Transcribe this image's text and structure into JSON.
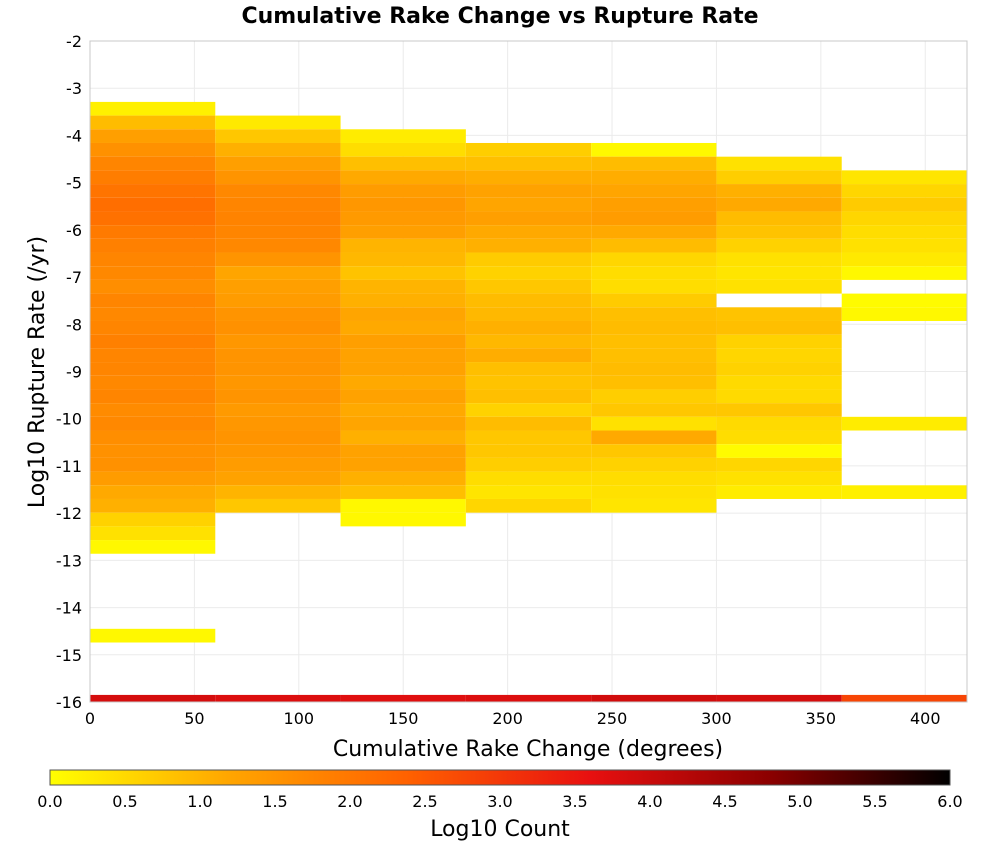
{
  "chart_data": {
    "type": "heatmap",
    "title": "Cumulative Rake Change vs Rupture Rate",
    "xlabel": "Cumulative Rake Change (degrees)",
    "ylabel": "Log10 Rupture Rate (/yr)",
    "xlim": [
      0,
      420
    ],
    "ylim": [
      -16,
      -2
    ],
    "x_ticks": [
      "0",
      "50",
      "100",
      "150",
      "200",
      "250",
      "300",
      "350",
      "400"
    ],
    "x_tick_values": [
      0,
      50,
      100,
      150,
      200,
      250,
      300,
      350,
      400
    ],
    "y_ticks": [
      "-2",
      "-3",
      "-4",
      "-5",
      "-6",
      "-7",
      "-8",
      "-9",
      "-10",
      "-11",
      "-12",
      "-13",
      "-14",
      "-15",
      "-16"
    ],
    "y_tick_values": [
      -2,
      -3,
      -4,
      -5,
      -6,
      -7,
      -8,
      -9,
      -10,
      -11,
      -12,
      -13,
      -14,
      -15,
      -16
    ],
    "grid": true,
    "x_bins": [
      [
        0,
        60
      ],
      [
        60,
        120
      ],
      [
        120,
        180
      ],
      [
        180,
        240
      ],
      [
        240,
        300
      ],
      [
        300,
        360
      ],
      [
        360,
        420
      ]
    ],
    "y_bin_size": 0.29,
    "colorbar": {
      "label": "Log10 Count",
      "range": [
        0,
        6
      ],
      "ticks": [
        "0.0",
        "0.5",
        "1.0",
        "1.5",
        "2.0",
        "2.5",
        "3.0",
        "3.5",
        "4.0",
        "4.5",
        "5.0",
        "5.5",
        "6.0"
      ],
      "tick_values": [
        0,
        0.5,
        1.0,
        1.5,
        2.0,
        2.5,
        3.0,
        3.5,
        4.0,
        4.5,
        5.0,
        5.5,
        6.0
      ],
      "stops": [
        "#ffff00",
        "#ffa500",
        "#ff6000",
        "#e81010",
        "#8b0000",
        "#000000"
      ]
    },
    "columns": [
      {
        "x_range": [
          0,
          60
        ],
        "bottom_row": {
          "y_range": [
            -16,
            -15.85
          ],
          "value": 3.85
        },
        "cells": [
          [
            -3.58,
            -3.29,
            0.2
          ],
          [
            -3.87,
            -3.58,
            0.9
          ],
          [
            -4.16,
            -3.87,
            1.3
          ],
          [
            -4.45,
            -4.16,
            1.55
          ],
          [
            -4.74,
            -4.45,
            1.75
          ],
          [
            -5.03,
            -4.74,
            1.9
          ],
          [
            -5.32,
            -5.03,
            2.05
          ],
          [
            -5.61,
            -5.32,
            2.15
          ],
          [
            -5.9,
            -5.61,
            2.1
          ],
          [
            -6.19,
            -5.9,
            1.95
          ],
          [
            -6.48,
            -6.19,
            1.85
          ],
          [
            -6.77,
            -6.48,
            1.75
          ],
          [
            -7.06,
            -6.77,
            1.7
          ],
          [
            -7.35,
            -7.06,
            1.6
          ],
          [
            -7.64,
            -7.35,
            1.75
          ],
          [
            -7.93,
            -7.64,
            1.7
          ],
          [
            -8.22,
            -7.93,
            1.75
          ],
          [
            -8.51,
            -8.22,
            1.85
          ],
          [
            -8.8,
            -8.51,
            1.75
          ],
          [
            -9.09,
            -8.8,
            1.75
          ],
          [
            -9.38,
            -9.09,
            1.7
          ],
          [
            -9.67,
            -9.38,
            1.75
          ],
          [
            -9.96,
            -9.67,
            1.65
          ],
          [
            -10.25,
            -9.96,
            1.7
          ],
          [
            -10.54,
            -10.25,
            1.6
          ],
          [
            -10.83,
            -10.54,
            1.55
          ],
          [
            -11.12,
            -10.83,
            1.55
          ],
          [
            -11.41,
            -11.12,
            1.35
          ],
          [
            -11.7,
            -11.41,
            1.15
          ],
          [
            -11.99,
            -11.7,
            1.05
          ],
          [
            -12.28,
            -11.99,
            0.6
          ],
          [
            -12.57,
            -12.28,
            0.4
          ],
          [
            -12.86,
            -12.57,
            0.1
          ],
          [
            -14.74,
            -14.45,
            0.1
          ]
        ]
      },
      {
        "x_range": [
          60,
          120
        ],
        "bottom_row": {
          "y_range": [
            -16,
            -15.85
          ],
          "value": 3.75
        },
        "cells": [
          [
            -3.87,
            -3.58,
            0.3
          ],
          [
            -4.16,
            -3.87,
            0.75
          ],
          [
            -4.45,
            -4.16,
            1.05
          ],
          [
            -4.74,
            -4.45,
            1.3
          ],
          [
            -5.03,
            -4.74,
            1.5
          ],
          [
            -5.32,
            -5.03,
            1.7
          ],
          [
            -5.61,
            -5.32,
            1.75
          ],
          [
            -5.9,
            -5.61,
            1.8
          ],
          [
            -6.19,
            -5.9,
            1.75
          ],
          [
            -6.48,
            -6.19,
            1.7
          ],
          [
            -6.77,
            -6.48,
            1.5
          ],
          [
            -7.06,
            -6.77,
            1.2
          ],
          [
            -7.35,
            -7.06,
            1.3
          ],
          [
            -7.64,
            -7.35,
            1.35
          ],
          [
            -7.93,
            -7.64,
            1.5
          ],
          [
            -8.22,
            -7.93,
            1.55
          ],
          [
            -8.51,
            -8.22,
            1.45
          ],
          [
            -8.8,
            -8.51,
            1.5
          ],
          [
            -9.09,
            -8.8,
            1.5
          ],
          [
            -9.38,
            -9.09,
            1.45
          ],
          [
            -9.67,
            -9.38,
            1.5
          ],
          [
            -9.96,
            -9.67,
            1.4
          ],
          [
            -10.25,
            -9.96,
            1.45
          ],
          [
            -10.54,
            -10.25,
            1.5
          ],
          [
            -10.83,
            -10.54,
            1.45
          ],
          [
            -11.12,
            -10.83,
            1.35
          ],
          [
            -11.41,
            -11.12,
            1.25
          ],
          [
            -11.7,
            -11.41,
            1.0
          ],
          [
            -11.99,
            -11.7,
            0.75
          ]
        ]
      },
      {
        "x_range": [
          120,
          180
        ],
        "bottom_row": {
          "y_range": [
            -16,
            -15.85
          ],
          "value": 3.7
        },
        "cells": [
          [
            -4.16,
            -3.87,
            0.25
          ],
          [
            -4.45,
            -4.16,
            0.45
          ],
          [
            -4.74,
            -4.45,
            0.85
          ],
          [
            -5.03,
            -4.74,
            1.15
          ],
          [
            -5.32,
            -5.03,
            1.35
          ],
          [
            -5.61,
            -5.32,
            1.45
          ],
          [
            -5.9,
            -5.61,
            1.4
          ],
          [
            -6.19,
            -5.9,
            1.3
          ],
          [
            -6.48,
            -6.19,
            1.0
          ],
          [
            -6.77,
            -6.48,
            0.95
          ],
          [
            -7.06,
            -6.77,
            0.8
          ],
          [
            -7.35,
            -7.06,
            1.0
          ],
          [
            -7.64,
            -7.35,
            1.05
          ],
          [
            -7.93,
            -7.64,
            1.2
          ],
          [
            -8.22,
            -7.93,
            1.15
          ],
          [
            -8.51,
            -8.22,
            1.3
          ],
          [
            -8.8,
            -8.51,
            1.25
          ],
          [
            -9.09,
            -8.8,
            1.25
          ],
          [
            -9.38,
            -9.09,
            1.15
          ],
          [
            -9.67,
            -9.38,
            1.25
          ],
          [
            -9.96,
            -9.67,
            1.15
          ],
          [
            -10.25,
            -9.96,
            1.2
          ],
          [
            -10.54,
            -10.25,
            1.05
          ],
          [
            -10.83,
            -10.54,
            1.25
          ],
          [
            -11.12,
            -10.83,
            1.25
          ],
          [
            -11.41,
            -11.12,
            1.05
          ],
          [
            -11.7,
            -11.41,
            0.85
          ],
          [
            -11.99,
            -11.7,
            0.1
          ],
          [
            -12.28,
            -11.99,
            0.1
          ]
        ]
      },
      {
        "x_range": [
          180,
          240
        ],
        "bottom_row": {
          "y_range": [
            -16,
            -15.85
          ],
          "value": 3.75
        },
        "cells": [
          [
            -4.45,
            -4.16,
            0.65
          ],
          [
            -4.74,
            -4.45,
            0.85
          ],
          [
            -5.03,
            -4.74,
            1.1
          ],
          [
            -5.32,
            -5.03,
            1.25
          ],
          [
            -5.61,
            -5.32,
            1.2
          ],
          [
            -5.9,
            -5.61,
            1.3
          ],
          [
            -6.19,
            -5.9,
            1.15
          ],
          [
            -6.48,
            -6.19,
            1.05
          ],
          [
            -6.77,
            -6.48,
            0.7
          ],
          [
            -7.06,
            -6.77,
            0.6
          ],
          [
            -7.35,
            -7.06,
            0.75
          ],
          [
            -7.64,
            -7.35,
            0.9
          ],
          [
            -7.93,
            -7.64,
            0.95
          ],
          [
            -8.22,
            -7.93,
            1.05
          ],
          [
            -8.51,
            -8.22,
            0.95
          ],
          [
            -8.8,
            -8.51,
            1.1
          ],
          [
            -9.09,
            -8.8,
            0.85
          ],
          [
            -9.38,
            -9.09,
            0.8
          ],
          [
            -9.67,
            -9.38,
            0.85
          ],
          [
            -9.96,
            -9.67,
            0.6
          ],
          [
            -10.25,
            -9.96,
            0.9
          ],
          [
            -10.54,
            -10.25,
            0.75
          ],
          [
            -10.83,
            -10.54,
            0.75
          ],
          [
            -11.12,
            -10.83,
            0.65
          ],
          [
            -11.41,
            -11.12,
            0.45
          ],
          [
            -11.7,
            -11.41,
            0.35
          ],
          [
            -11.99,
            -11.7,
            0.55
          ]
        ]
      },
      {
        "x_range": [
          240,
          300
        ],
        "bottom_row": {
          "y_range": [
            -16,
            -15.85
          ],
          "value": 3.9
        },
        "cells": [
          [
            -4.45,
            -4.16,
            0.1
          ],
          [
            -4.74,
            -4.45,
            0.9
          ],
          [
            -5.03,
            -4.74,
            1.1
          ],
          [
            -5.32,
            -5.03,
            1.2
          ],
          [
            -5.61,
            -5.32,
            1.3
          ],
          [
            -5.9,
            -5.61,
            1.35
          ],
          [
            -6.19,
            -5.9,
            1.15
          ],
          [
            -6.48,
            -6.19,
            0.9
          ],
          [
            -6.77,
            -6.48,
            0.55
          ],
          [
            -7.06,
            -6.77,
            0.45
          ],
          [
            -7.35,
            -7.06,
            0.45
          ],
          [
            -7.64,
            -7.35,
            0.7
          ],
          [
            -7.93,
            -7.64,
            0.85
          ],
          [
            -8.22,
            -7.93,
            0.9
          ],
          [
            -8.51,
            -8.22,
            0.85
          ],
          [
            -8.8,
            -8.51,
            0.85
          ],
          [
            -9.09,
            -8.8,
            0.9
          ],
          [
            -9.38,
            -9.09,
            0.85
          ],
          [
            -9.67,
            -9.38,
            0.65
          ],
          [
            -9.96,
            -9.67,
            0.75
          ],
          [
            -10.25,
            -9.96,
            0.4
          ],
          [
            -10.54,
            -10.25,
            1.15
          ],
          [
            -10.83,
            -10.54,
            0.75
          ],
          [
            -11.12,
            -10.83,
            0.6
          ],
          [
            -11.41,
            -11.12,
            0.45
          ],
          [
            -11.7,
            -11.41,
            0.4
          ],
          [
            -11.99,
            -11.7,
            0.35
          ]
        ]
      },
      {
        "x_range": [
          300,
          360
        ],
        "bottom_row": {
          "y_range": [
            -16,
            -15.85
          ],
          "value": 3.85
        },
        "cells": [
          [
            -4.74,
            -4.45,
            0.4
          ],
          [
            -5.03,
            -4.74,
            0.65
          ],
          [
            -5.32,
            -5.03,
            1.05
          ],
          [
            -5.61,
            -5.32,
            1.15
          ],
          [
            -5.9,
            -5.61,
            0.9
          ],
          [
            -6.19,
            -5.9,
            0.8
          ],
          [
            -6.48,
            -6.19,
            0.6
          ],
          [
            -6.77,
            -6.48,
            0.4
          ],
          [
            -7.06,
            -6.77,
            0.35
          ],
          [
            -7.35,
            -7.06,
            0.4
          ],
          [
            -7.93,
            -7.64,
            0.8
          ],
          [
            -8.22,
            -7.93,
            0.85
          ],
          [
            -8.51,
            -8.22,
            0.6
          ],
          [
            -8.8,
            -8.51,
            0.55
          ],
          [
            -9.09,
            -8.8,
            0.6
          ],
          [
            -9.38,
            -9.09,
            0.5
          ],
          [
            -9.67,
            -9.38,
            0.5
          ],
          [
            -9.96,
            -9.67,
            0.75
          ],
          [
            -10.25,
            -9.96,
            0.5
          ],
          [
            -10.54,
            -10.25,
            0.45
          ],
          [
            -10.83,
            -10.54,
            0.05
          ],
          [
            -11.12,
            -10.83,
            0.55
          ],
          [
            -11.41,
            -11.12,
            0.4
          ],
          [
            -11.7,
            -11.41,
            0.25
          ]
        ]
      },
      {
        "x_range": [
          360,
          420
        ],
        "bottom_row": {
          "y_range": [
            -16,
            -15.85
          ],
          "value": 2.8
        },
        "cells": [
          [
            -5.03,
            -4.74,
            0.35
          ],
          [
            -5.32,
            -5.03,
            0.55
          ],
          [
            -5.61,
            -5.32,
            0.7
          ],
          [
            -5.9,
            -5.61,
            0.55
          ],
          [
            -6.19,
            -5.9,
            0.45
          ],
          [
            -6.48,
            -6.19,
            0.4
          ],
          [
            -6.77,
            -6.48,
            0.3
          ],
          [
            -7.06,
            -6.77,
            0.1
          ],
          [
            -7.64,
            -7.35,
            0.05
          ],
          [
            -7.93,
            -7.64,
            0.1
          ],
          [
            -10.25,
            -9.96,
            0.25
          ],
          [
            -11.7,
            -11.41,
            0.2
          ]
        ]
      }
    ]
  }
}
